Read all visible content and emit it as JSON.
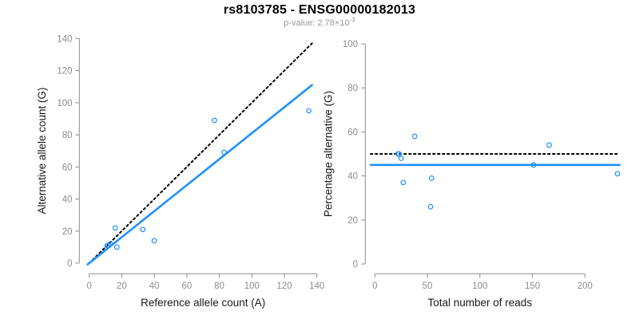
{
  "header": {
    "title": "rs8103785 - ENSG00000182013",
    "subtitle_text": "p-value: 2.78×10",
    "subtitle_exponent": "-3"
  },
  "colors": {
    "accent_blue": "#1E90FF",
    "line_black": "#000000",
    "axis_gray": "#8c8c8c",
    "tick_text_gray": "#8c8c8c",
    "axis_title_black": "#1a1a1a",
    "subtitle_gray": "#9a9a9a",
    "background": "#ffffff"
  },
  "chart_data": [
    {
      "type": "scatter",
      "panel": "left",
      "xlabel": "Reference allele count (A)",
      "ylabel": "Alternative allele count (G)",
      "xlim": [
        0,
        140
      ],
      "ylim": [
        0,
        140
      ],
      "xticks": [
        0,
        20,
        40,
        60,
        80,
        100,
        120,
        140
      ],
      "yticks": [
        0,
        20,
        40,
        60,
        80,
        100,
        120,
        140
      ],
      "grid": false,
      "points": [
        [
          11,
          11
        ],
        [
          12,
          11
        ],
        [
          13,
          12
        ],
        [
          16,
          22
        ],
        [
          17,
          10
        ],
        [
          33,
          21
        ],
        [
          40,
          14
        ],
        [
          77,
          89
        ],
        [
          83,
          69
        ],
        [
          135,
          95
        ]
      ],
      "lines": [
        {
          "name": "identity-line",
          "style": "dotted",
          "color": "#000000",
          "x": [
            0,
            137
          ],
          "y": [
            0,
            137
          ]
        },
        {
          "name": "fit-line",
          "style": "solid",
          "color": "#1E90FF",
          "x": [
            -1,
            137
          ],
          "y": [
            -0.8,
            111
          ]
        }
      ]
    },
    {
      "type": "scatter",
      "panel": "right",
      "xlabel": "Total number of reads",
      "ylabel": "Percentage alternative (G)",
      "xlim": [
        0,
        235
      ],
      "ylim": [
        0,
        100
      ],
      "xticks": [
        0,
        50,
        100,
        150,
        200
      ],
      "yticks": [
        0,
        20,
        40,
        60,
        80,
        100
      ],
      "grid": false,
      "points": [
        [
          22,
          50
        ],
        [
          23,
          50
        ],
        [
          25,
          48
        ],
        [
          27,
          37
        ],
        [
          38,
          58
        ],
        [
          53,
          26
        ],
        [
          54,
          39
        ],
        [
          151,
          45
        ],
        [
          166,
          54
        ],
        [
          231,
          41
        ]
      ],
      "lines": [
        {
          "name": "expected-50pct-line",
          "style": "dotted",
          "color": "#000000",
          "x": [
            -4,
            232
          ],
          "y": [
            50,
            50
          ]
        },
        {
          "name": "fit-line",
          "style": "solid",
          "color": "#1E90FF",
          "x": [
            -4,
            233
          ],
          "y": [
            45,
            45
          ]
        }
      ]
    }
  ]
}
